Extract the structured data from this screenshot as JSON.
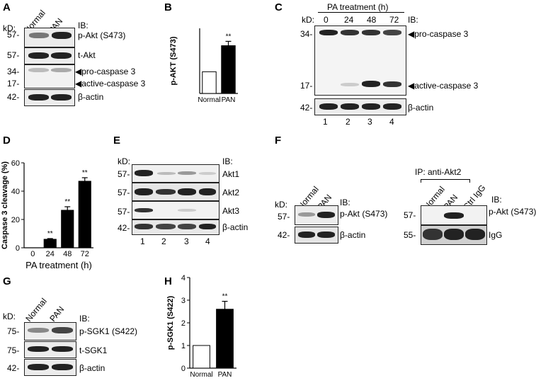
{
  "panels": {
    "A": {
      "letter": "A",
      "kd": "kD:",
      "ib": "IB:",
      "lanes": [
        "Normal",
        "PAN"
      ],
      "rows": [
        {
          "mw": "57-",
          "label": "p-Akt (S473)"
        },
        {
          "mw": "57-",
          "label": "t-Akt"
        },
        {
          "mw": "34-",
          "label": "◀pro-caspase 3"
        },
        {
          "mw": "17-",
          "label": "◀active-caspase 3"
        },
        {
          "mw": "42-",
          "label": "β-actin"
        }
      ]
    },
    "B": {
      "letter": "B"
    },
    "C": {
      "letter": "C",
      "kd": "kD:",
      "ib": "IB:",
      "treatment": "PA treatment (h)",
      "timepoints": [
        "0",
        "24",
        "48",
        "72"
      ],
      "lane_numbers": [
        "1",
        "2",
        "3",
        "4"
      ],
      "rows": [
        {
          "mw": "34-",
          "label": "◀pro-caspase 3"
        },
        {
          "mw": "17-",
          "label": "◀active-caspase 3"
        },
        {
          "mw": "42-",
          "label": "β-actin"
        }
      ]
    },
    "D": {
      "letter": "D"
    },
    "E": {
      "letter": "E",
      "kd": "kD:",
      "ib": "IB:",
      "lane_numbers": [
        "1",
        "2",
        "3",
        "4"
      ],
      "rows": [
        {
          "mw": "57-",
          "label": "Akt1"
        },
        {
          "mw": "57-",
          "label": "Akt2"
        },
        {
          "mw": "57-",
          "label": "Akt3"
        },
        {
          "mw": "42-",
          "label": "β-actin"
        }
      ]
    },
    "F": {
      "letter": "F",
      "kd": "kD:",
      "ib": "IB:",
      "lanes": [
        "Normal",
        "PAN"
      ],
      "rows": [
        {
          "mw": "57-",
          "label": "p-Akt (S473)"
        },
        {
          "mw": "42-",
          "label": "β-actin"
        }
      ],
      "ip_title": "IP: anti-Akt2",
      "ip_lanes": [
        "Normal",
        "PAN",
        "Ctrl IgG"
      ],
      "ip_rows": [
        {
          "mw": "57-",
          "label": "p-Akt (S473)"
        },
        {
          "mw": "55-",
          "label": "IgG"
        }
      ]
    },
    "G": {
      "letter": "G",
      "kd": "kD:",
      "ib": "IB:",
      "lanes": [
        "Normal",
        "PAN"
      ],
      "rows": [
        {
          "mw": "75-",
          "label": "p-SGK1 (S422)"
        },
        {
          "mw": "75-",
          "label": "t-SGK1"
        },
        {
          "mw": "42-",
          "label": "β-actin"
        }
      ]
    },
    "H": {
      "letter": "H"
    }
  },
  "chart_data": [
    {
      "type": "bar",
      "panel": "B",
      "categories": [
        "Normal",
        "PAN"
      ],
      "values": [
        1.0,
        2.2
      ],
      "errors": [
        0,
        0.2
      ],
      "significance": [
        "",
        "**"
      ],
      "ylabel": "p-AKT (S473)",
      "ylim": [
        0,
        3
      ],
      "yticks": [],
      "fills": [
        "#ffffff",
        "#000000"
      ]
    },
    {
      "type": "bar",
      "panel": "D",
      "categories": [
        "0",
        "24",
        "48",
        "72"
      ],
      "values": [
        0,
        6,
        26.5,
        47
      ],
      "errors": [
        0,
        0.5,
        2.5,
        2.5
      ],
      "significance": [
        "",
        "**",
        "**",
        "**"
      ],
      "ylabel": "Caspase 3 cleavage (%)",
      "xlabel": "PA treatment (h)",
      "ylim": [
        0,
        60
      ],
      "yticks": [
        "0",
        "20",
        "40",
        "60"
      ],
      "fills": [
        "#000000",
        "#000000",
        "#000000",
        "#000000"
      ]
    },
    {
      "type": "bar",
      "panel": "H",
      "categories": [
        "Normal",
        "PAN"
      ],
      "values": [
        1.0,
        2.6
      ],
      "errors": [
        0,
        0.35
      ],
      "significance": [
        "",
        "**"
      ],
      "ylabel": "p-SGK1 (S422)",
      "ylim": [
        0,
        4
      ],
      "yticks": [
        "0",
        "1",
        "2",
        "3",
        "4"
      ],
      "fills": [
        "#ffffff",
        "#000000"
      ]
    }
  ]
}
